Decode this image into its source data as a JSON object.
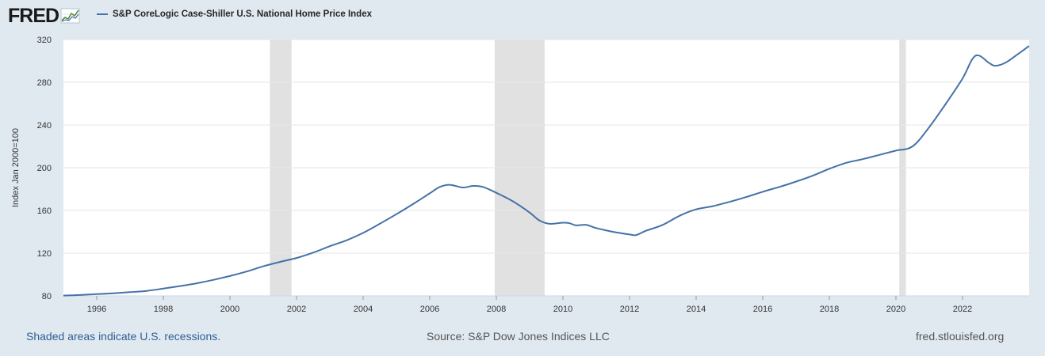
{
  "header": {
    "logo_text": "FRED",
    "logo_icon": "chart-line-icon",
    "series_label": "S&P CoreLogic Case-Shiller U.S. National Home Price Index"
  },
  "colors": {
    "line": "#4572a7",
    "recession_band": "#e1e1e1",
    "plot_background": "#ffffff",
    "page_background": "#e1e9f0",
    "gridline": "#e6e6e6"
  },
  "footer": {
    "recession_note": "Shaded areas indicate U.S. recessions.",
    "source": "Source: S&P Dow Jones Indices LLC",
    "site": "fred.stlouisfed.org"
  },
  "chart_data": {
    "type": "line",
    "title": "S&P CoreLogic Case-Shiller U.S. National Home Price Index",
    "ylabel": "Index Jan 2000=100",
    "xlabel": "",
    "xlim": [
      1995.0,
      2024.0
    ],
    "ylim": [
      80,
      320
    ],
    "yticks": [
      80,
      120,
      160,
      200,
      240,
      280,
      320
    ],
    "xticks": [
      "1996",
      "1998",
      "2000",
      "2002",
      "2004",
      "2006",
      "2008",
      "2010",
      "2012",
      "2014",
      "2016",
      "2018",
      "2020",
      "2022"
    ],
    "grid": true,
    "recessions": [
      [
        2001.2,
        2001.85
      ],
      [
        2007.95,
        2009.45
      ],
      [
        2020.1,
        2020.3
      ]
    ],
    "series": [
      {
        "name": "S&P CoreLogic Case-Shiller U.S. National Home Price Index",
        "x": [
          1995.0,
          1995.5,
          1996.0,
          1996.5,
          1997.0,
          1997.5,
          1998.0,
          1998.5,
          1999.0,
          1999.5,
          2000.0,
          2000.5,
          2001.0,
          2001.5,
          2002.0,
          2002.5,
          2003.0,
          2003.5,
          2004.0,
          2004.5,
          2005.0,
          2005.5,
          2006.0,
          2006.3,
          2006.6,
          2007.0,
          2007.3,
          2007.6,
          2008.0,
          2008.5,
          2009.0,
          2009.3,
          2009.6,
          2010.0,
          2010.2,
          2010.4,
          2010.7,
          2011.0,
          2011.5,
          2012.0,
          2012.2,
          2012.5,
          2013.0,
          2013.5,
          2014.0,
          2014.5,
          2015.0,
          2015.5,
          2016.0,
          2016.5,
          2017.0,
          2017.5,
          2018.0,
          2018.5,
          2019.0,
          2019.5,
          2020.0,
          2020.5,
          2021.0,
          2021.5,
          2022.0,
          2022.3,
          2022.5,
          2022.8,
          2023.0,
          2023.3,
          2023.6,
          2024.0
        ],
        "values": [
          80.3,
          80.8,
          81.6,
          82.4,
          83.5,
          84.7,
          86.8,
          89.2,
          91.8,
          95.0,
          98.6,
          102.8,
          107.7,
          111.8,
          115.5,
          120.5,
          126.5,
          132.0,
          139.0,
          147.5,
          156.5,
          166.0,
          176.0,
          182.0,
          184.0,
          181.5,
          183.0,
          182.0,
          176.5,
          168.5,
          158.0,
          150.5,
          147.5,
          148.5,
          148.0,
          146.0,
          146.5,
          143.5,
          140.0,
          137.5,
          137.0,
          141.0,
          146.5,
          155.0,
          161.0,
          164.0,
          168.0,
          172.5,
          177.5,
          182.0,
          187.0,
          192.5,
          199.0,
          204.5,
          208.0,
          212.0,
          216.0,
          220.0,
          238.0,
          260.0,
          283.5,
          302.0,
          305.0,
          298.0,
          295.5,
          298.5,
          305.0,
          314.0
        ]
      }
    ]
  }
}
